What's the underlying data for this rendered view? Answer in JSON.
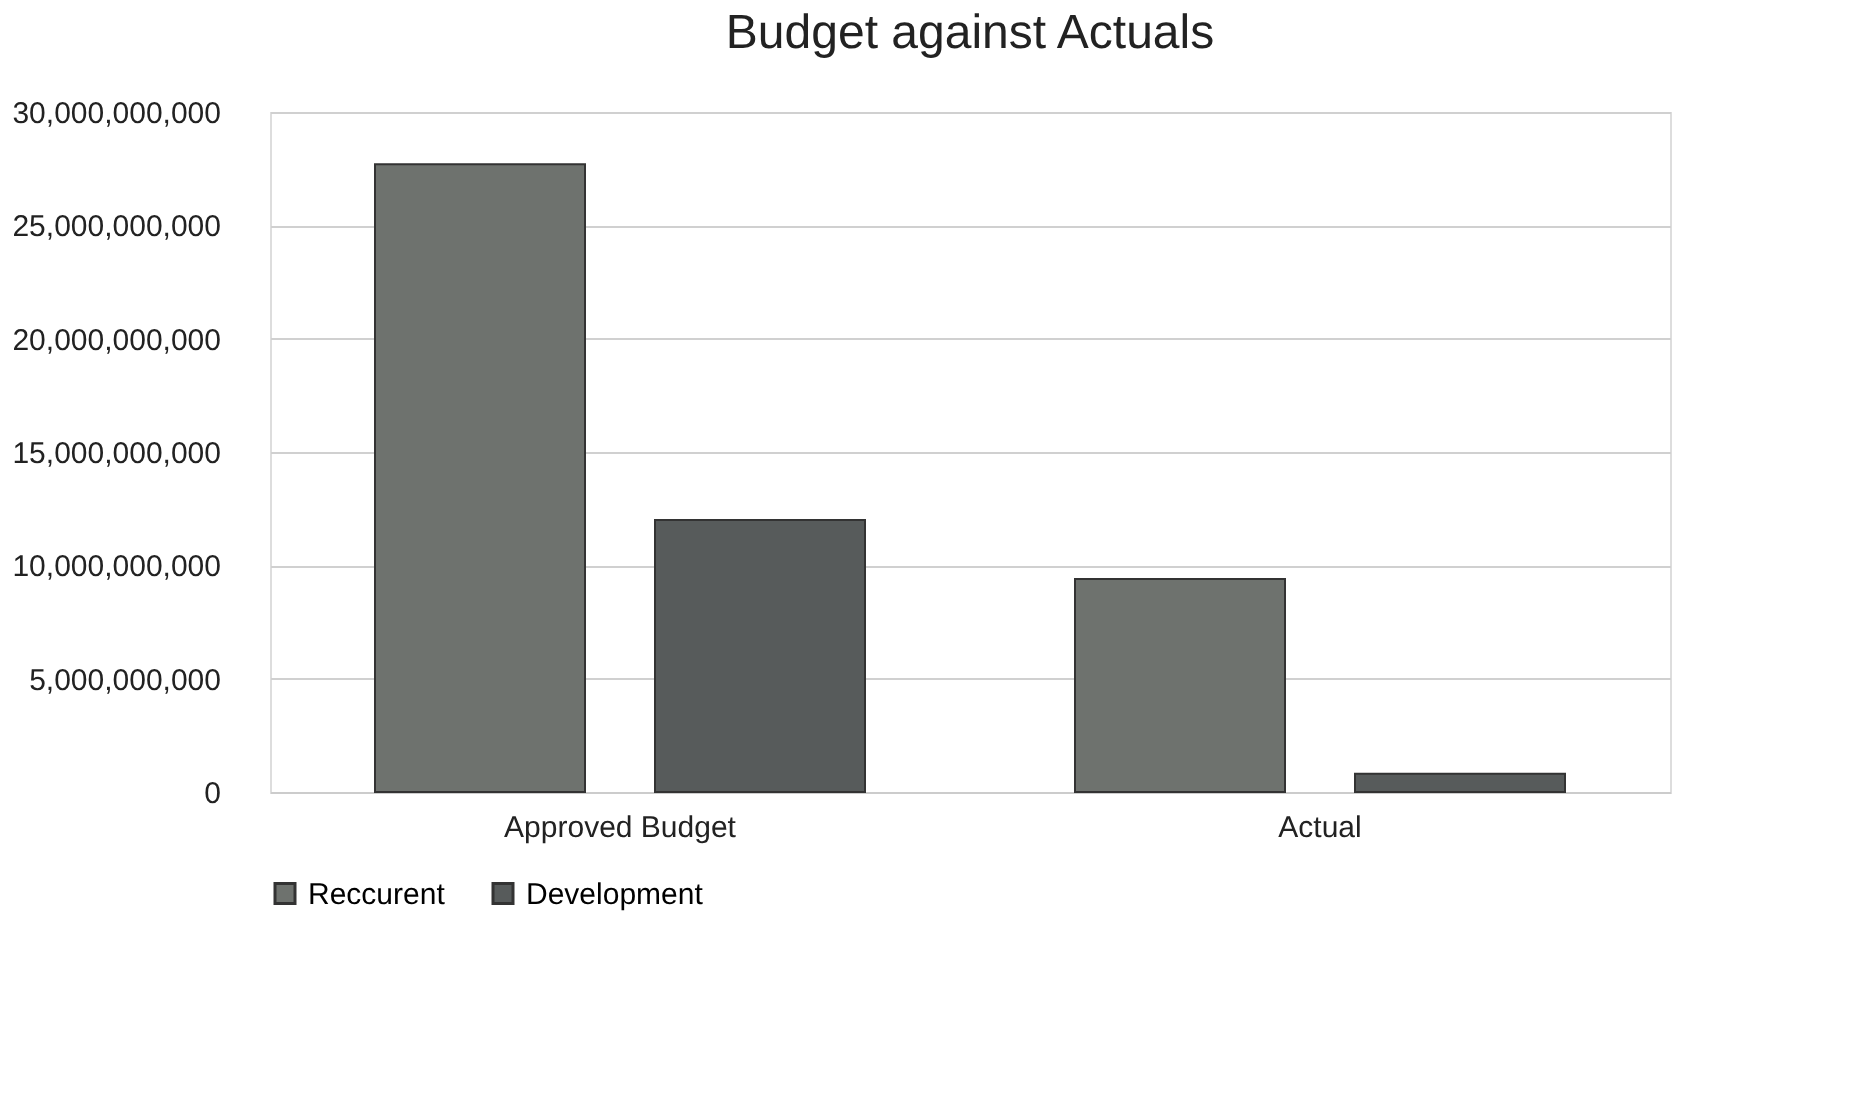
{
  "chart_data": {
    "type": "bar",
    "title": "Budget against Actuals",
    "categories": [
      "Approved Budget",
      "Actual"
    ],
    "series": [
      {
        "name": "Reccurent",
        "color": "#6e726e",
        "values": [
          27700000000,
          9400000000
        ]
      },
      {
        "name": "Development",
        "color": "#575b5b",
        "values": [
          12000000000,
          800000000
        ]
      }
    ],
    "ylim": [
      0,
      30000000000
    ],
    "yticks": [
      0,
      {
        "value": 5000000000,
        "label": "5,000,000,000"
      },
      {
        "value": 10000000000,
        "label": "10,000,000,000"
      },
      {
        "value": 15000000000,
        "label": "15,000,000,000"
      },
      {
        "value": 20000000000,
        "label": "20,000,000,000"
      },
      {
        "value": 25000000000,
        "label": "25,000,000,000"
      },
      {
        "value": 30000000000,
        "label": "30,000,000,000"
      }
    ],
    "grid": "y",
    "legend": "bottom"
  }
}
